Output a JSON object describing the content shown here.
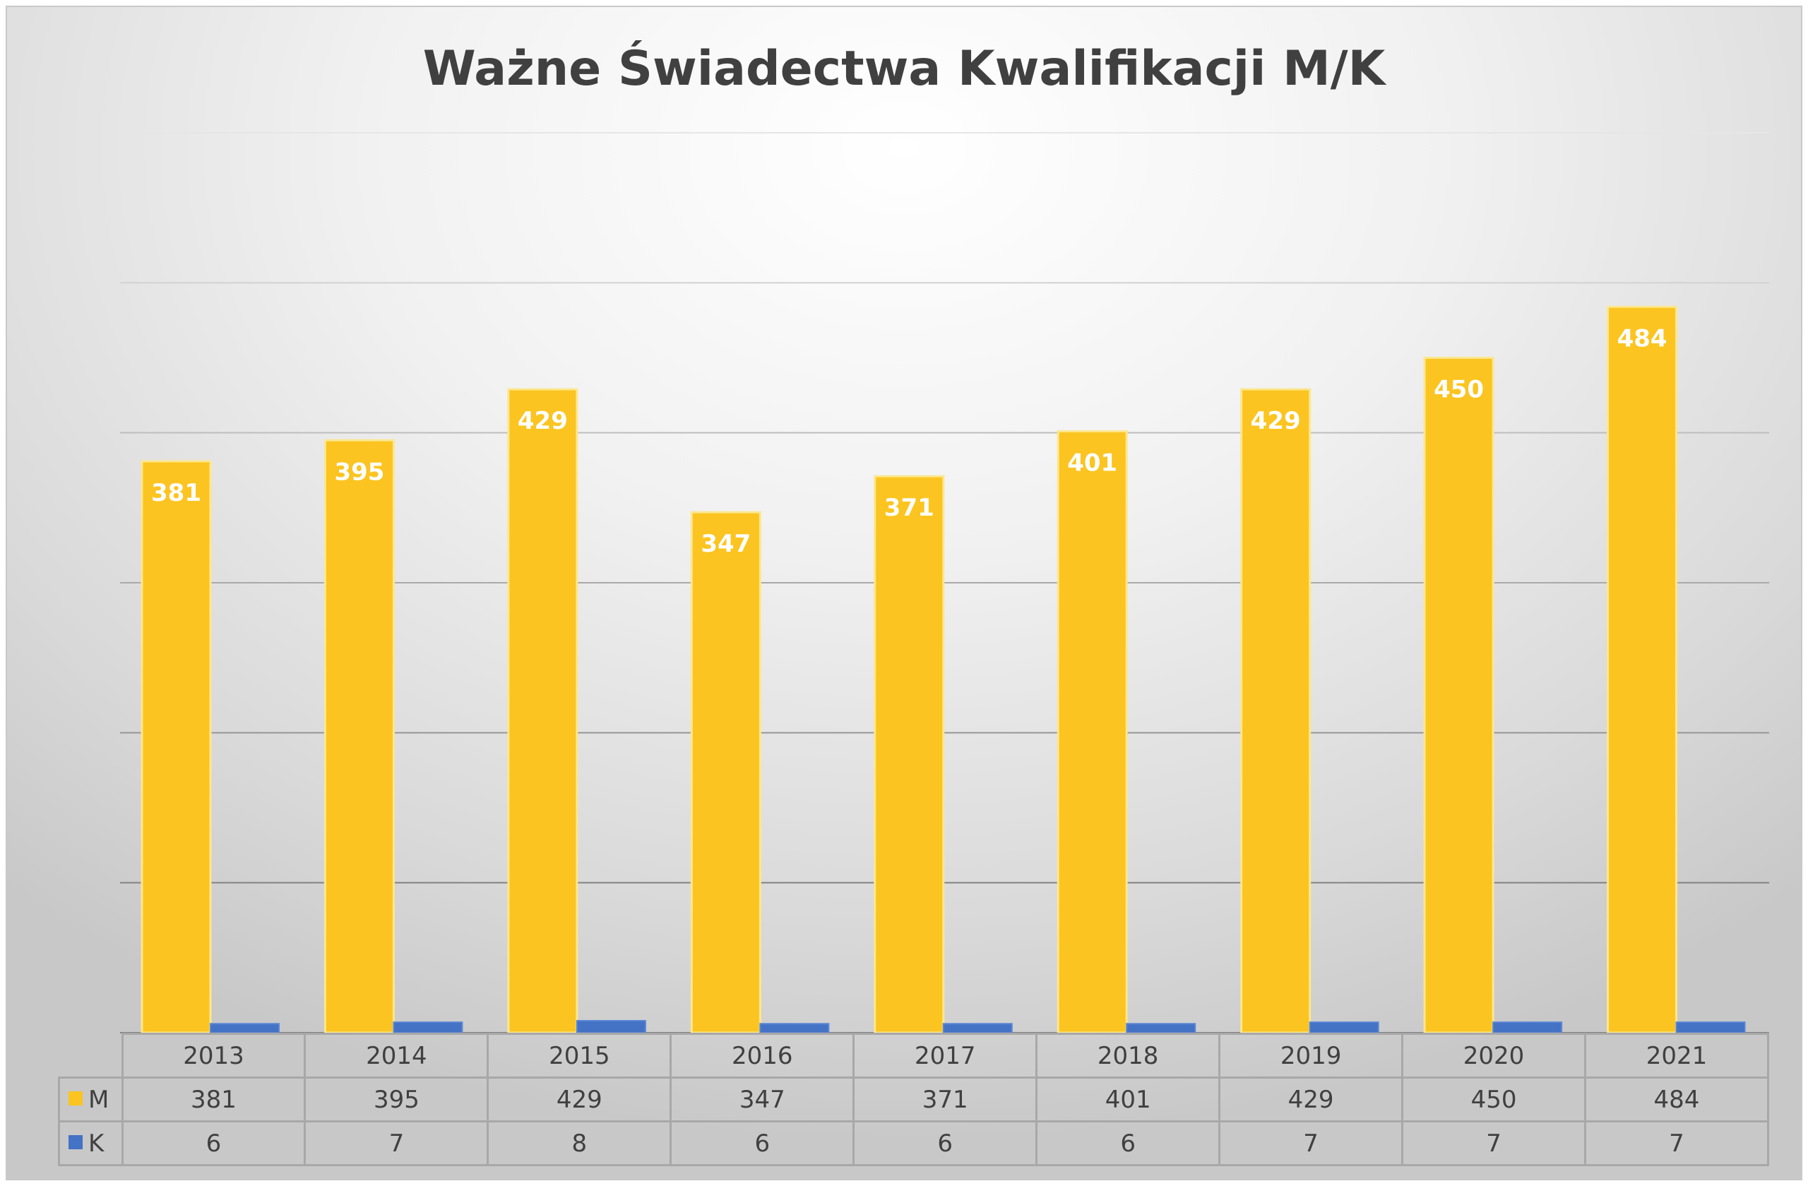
{
  "chart_data": {
    "type": "bar",
    "title": "Ważne Świadectwa Kwalifikacji M/K",
    "categories": [
      "2013",
      "2014",
      "2015",
      "2016",
      "2017",
      "2018",
      "2019",
      "2020",
      "2021"
    ],
    "series": [
      {
        "name": "M",
        "color": "#fbc420",
        "values": [
          381,
          395,
          429,
          347,
          371,
          401,
          429,
          450,
          484
        ]
      },
      {
        "name": "K",
        "color": "#4472c4",
        "values": [
          6,
          7,
          8,
          6,
          6,
          6,
          7,
          7,
          7
        ]
      }
    ],
    "xlabel": "",
    "ylabel": "",
    "ylim": [
      0,
      600
    ],
    "grid": true,
    "data_labels": "M series only",
    "legend": "data table"
  }
}
